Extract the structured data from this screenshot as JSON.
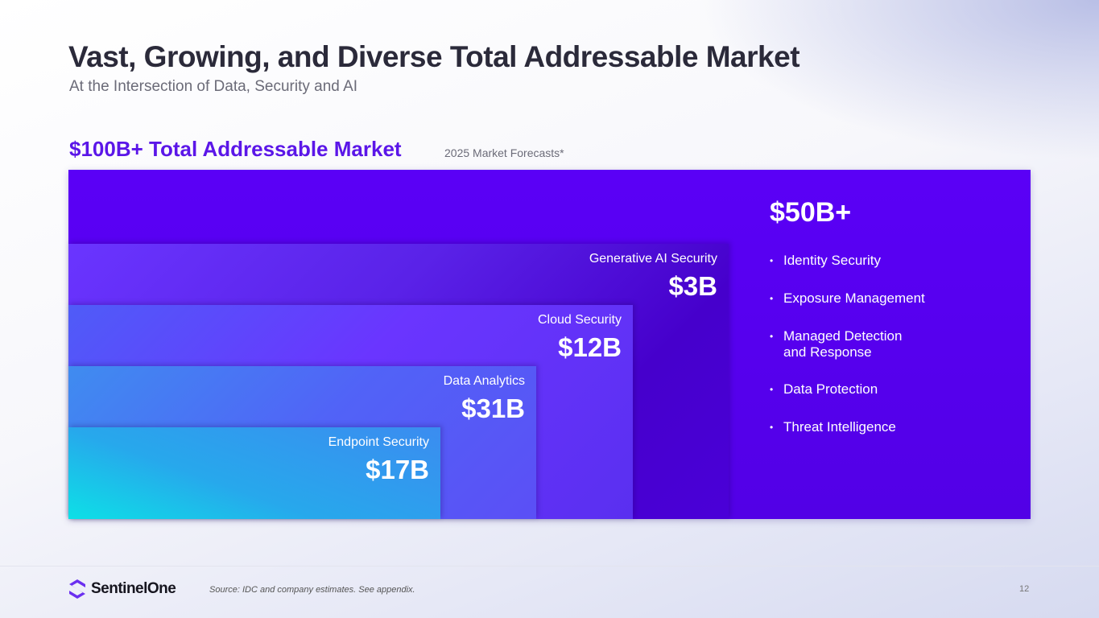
{
  "header": {
    "title": "Vast, Growing, and Diverse Total Addressable Market",
    "subtitle": "At the Intersection of Data, Security and AI"
  },
  "tam": {
    "heading": "$100B+ Total Addressable Market",
    "note": "2025 Market Forecasts*"
  },
  "segments": [
    {
      "label": "Generative AI Security",
      "value": "$3B"
    },
    {
      "label": "Cloud Security",
      "value": "$12B"
    },
    {
      "label": "Data Analytics",
      "value": "$31B"
    },
    {
      "label": "Endpoint Security",
      "value": "$17B"
    }
  ],
  "other": {
    "value": "$50B+",
    "items": [
      "Identity Security",
      "Exposure Management",
      "Managed Detection and Response",
      "Data Protection",
      "Threat Intelligence"
    ]
  },
  "footer": {
    "logo": "SentinelOne",
    "source": "Source: IDC and company estimates. See appendix.",
    "page": "12"
  },
  "colors": {
    "accent": "#5b16e8",
    "outer": "#5a00f6",
    "cyan": "#0de0e6"
  }
}
